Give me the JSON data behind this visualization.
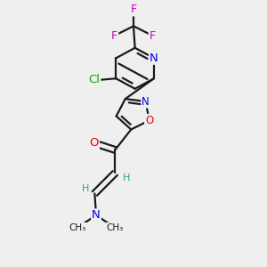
{
  "fig_bg": "#efefef",
  "bond_color": "#1a1a1a",
  "atom_colors": {
    "N": "#0000ee",
    "O": "#ee0000",
    "F": "#cc00cc",
    "Cl": "#00aa00",
    "C": "#1a1a1a",
    "H": "#339999"
  },
  "lw": 1.6,
  "font_size": 8.5,
  "xlim": [
    0.05,
    0.95
  ],
  "ylim": [
    0.02,
    0.98
  ]
}
